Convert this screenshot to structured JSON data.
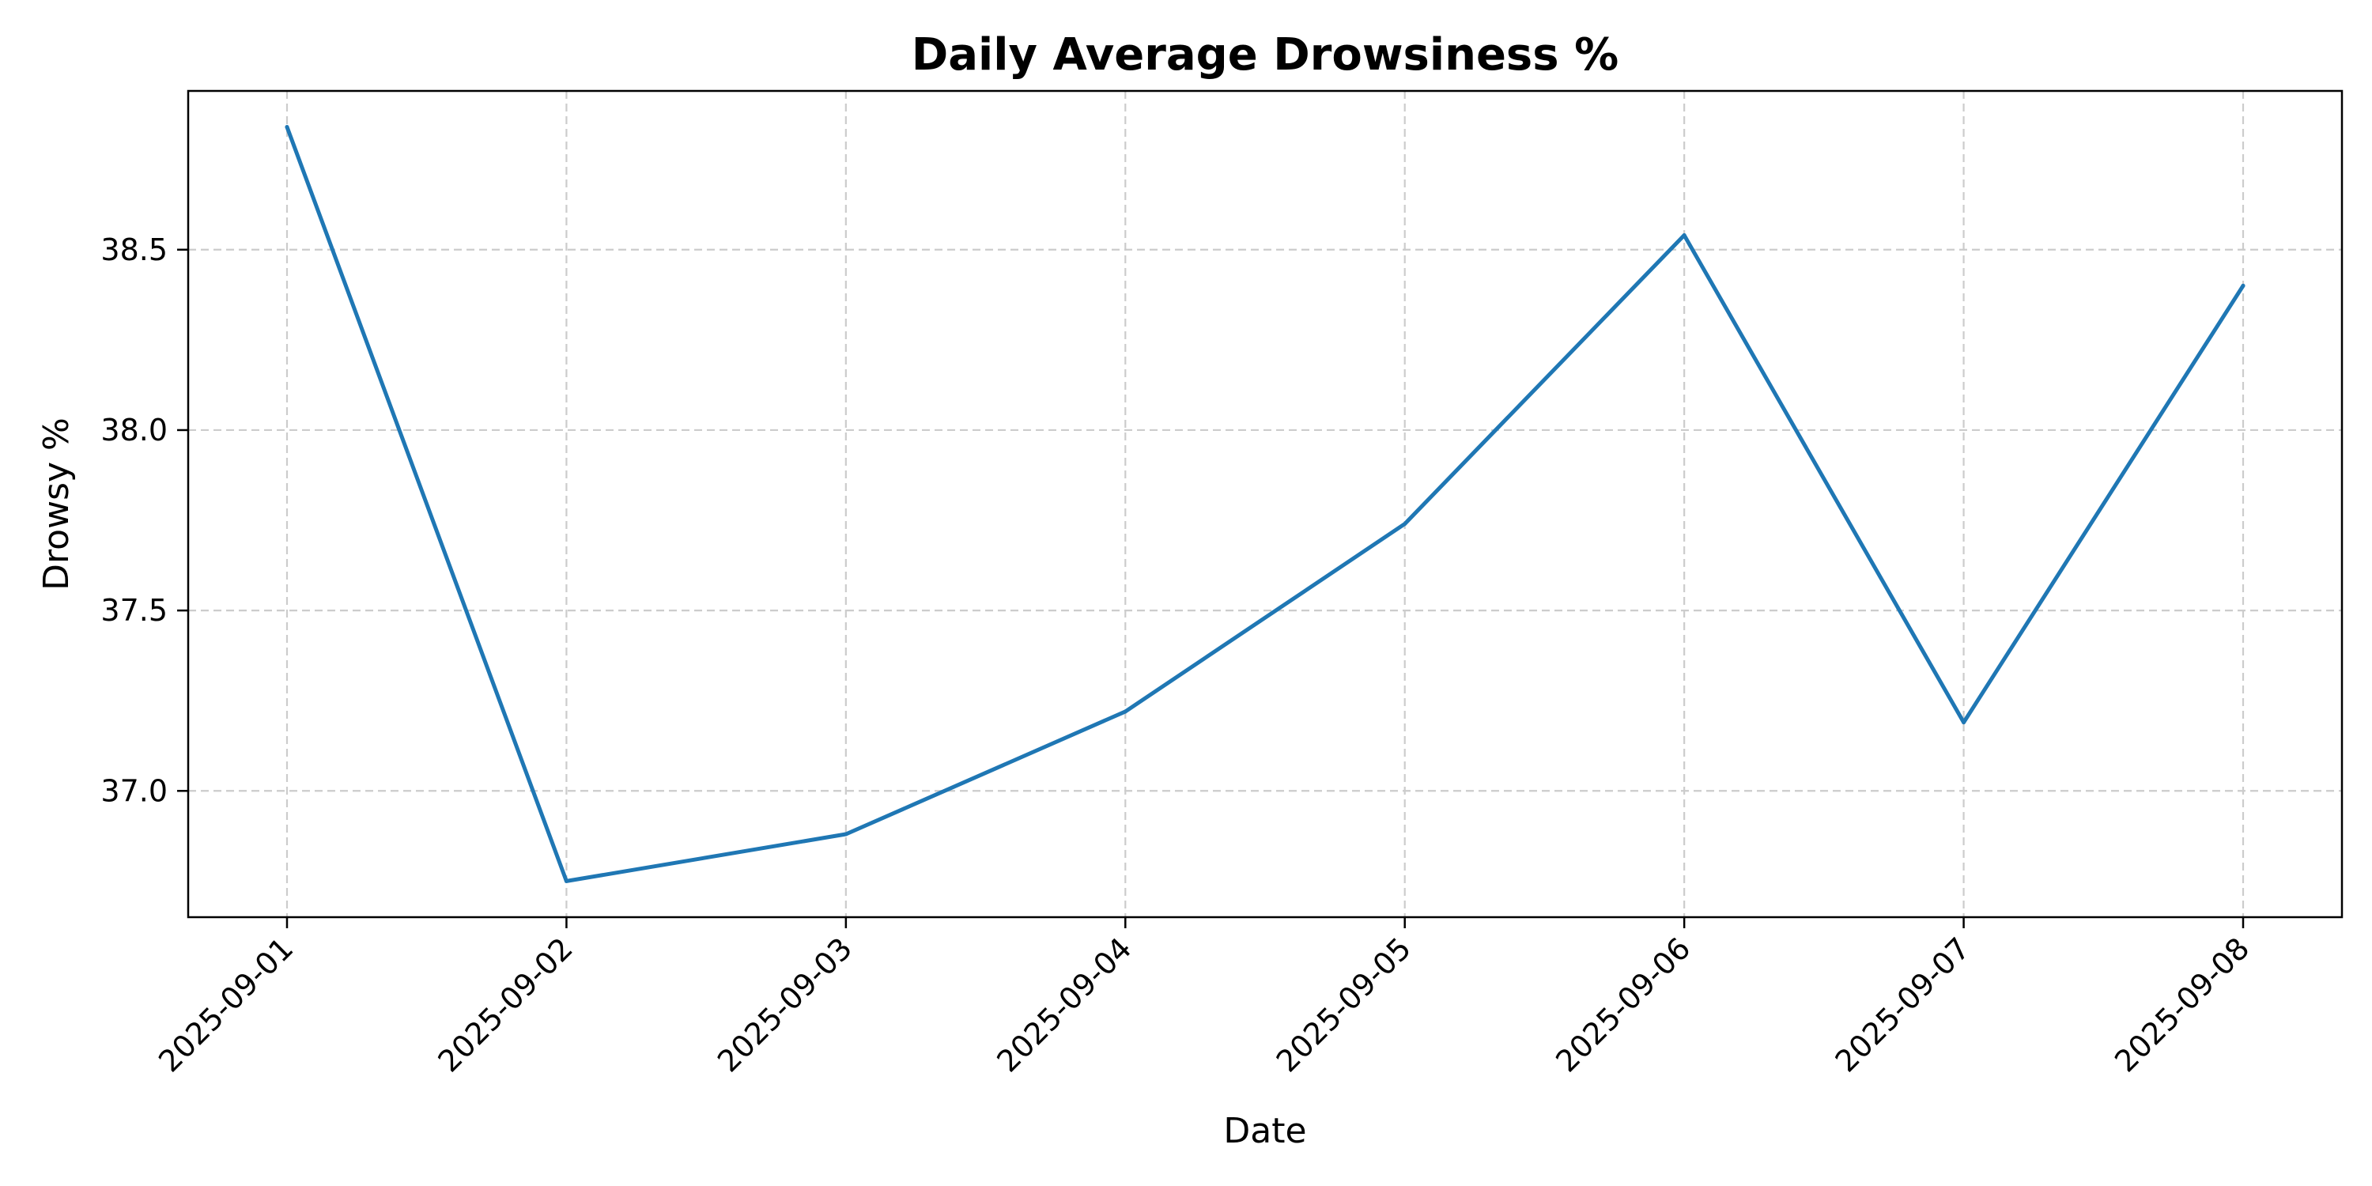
{
  "chart_data": {
    "type": "line",
    "title": "Daily Average Drowsiness %",
    "xlabel": "Date",
    "ylabel": "Drowsy %",
    "x": [
      "2025-09-01",
      "2025-09-02",
      "2025-09-03",
      "2025-09-04",
      "2025-09-05",
      "2025-09-06",
      "2025-09-07",
      "2025-09-08"
    ],
    "series": [
      {
        "values": [
          38.84,
          36.75,
          36.88,
          37.22,
          37.74,
          38.54,
          37.19,
          38.4
        ],
        "color": "#1f77b4"
      }
    ],
    "yticks": [
      "37.0",
      "37.5",
      "38.0",
      "38.5"
    ],
    "ylim": [
      36.65,
      38.94
    ],
    "grid": true,
    "grid_style": "dashed",
    "legend": "none"
  }
}
